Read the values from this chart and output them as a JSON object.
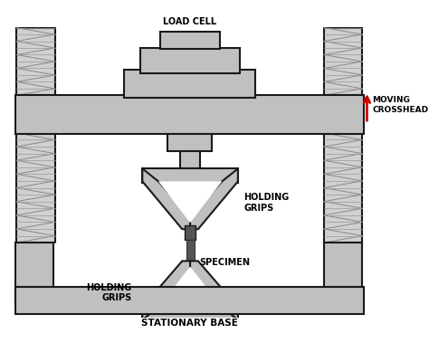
{
  "fig_width": 4.74,
  "fig_height": 3.79,
  "dpi": 100,
  "bg_color": "#ffffff",
  "fill_gray": "#c0c0c0",
  "fill_white": "#ffffff",
  "edge_color": "#1a1a1a",
  "arrow_color": "#cc0000",
  "text_color": "#000000",
  "labels": {
    "load_cell": "LOAD CELL",
    "moving_crosshead": "MOVING\nCROSSHEAD",
    "holding_grips_top": "HOLDING\nGRIPS",
    "specimen": "SPECIMEN",
    "holding_grips_bot": "HOLDING\nGRIPS",
    "stationary_base": "STATIONARY BASE"
  },
  "fontsize": 7.0,
  "fontweight": "bold"
}
